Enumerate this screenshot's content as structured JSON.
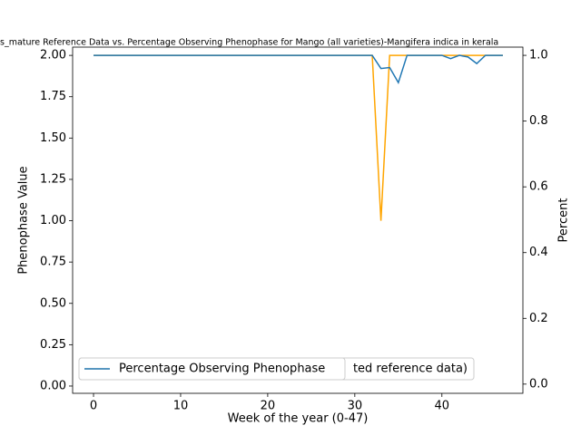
{
  "chart_data": {
    "type": "line",
    "title": "s_mature Reference Data vs. Percentage Observing Phenophase for Mango (all varieties)-Mangifera indica in kerala",
    "x_label": "Week of the year (0-47)",
    "y_label": "Phenophase Value",
    "y2_label": "Percent",
    "x": [
      0,
      1,
      2,
      3,
      4,
      5,
      6,
      7,
      8,
      9,
      10,
      11,
      12,
      13,
      14,
      15,
      16,
      17,
      18,
      19,
      20,
      21,
      22,
      23,
      24,
      25,
      26,
      27,
      28,
      29,
      30,
      31,
      32,
      33,
      34,
      35,
      36,
      37,
      38,
      39,
      40,
      41,
      42,
      43,
      44,
      45,
      46,
      47
    ],
    "series": [
      {
        "name": "ted reference data)",
        "color": "#ffa500",
        "axis": "y",
        "values": [
          2,
          2,
          2,
          2,
          2,
          2,
          2,
          2,
          2,
          2,
          2,
          2,
          2,
          2,
          2,
          2,
          2,
          2,
          2,
          2,
          2,
          2,
          2,
          2,
          2,
          2,
          2,
          2,
          2,
          2,
          2,
          2,
          2,
          1,
          2,
          2,
          2,
          2,
          2,
          2,
          2,
          2,
          2,
          2,
          2,
          2,
          2,
          2
        ]
      },
      {
        "name": "Percentage Observing Phenophase",
        "color": "#1f77b4",
        "axis": "y2",
        "values": [
          1,
          1,
          1,
          1,
          1,
          1,
          1,
          1,
          1,
          1,
          1,
          1,
          1,
          1,
          1,
          1,
          1,
          1,
          1,
          1,
          1,
          1,
          1,
          1,
          1,
          1,
          1,
          1,
          1,
          1,
          1,
          1,
          1,
          0.96,
          0.963,
          0.917,
          1,
          1,
          1,
          1,
          1,
          0.99,
          1,
          0.995,
          0.975,
          1,
          1,
          1
        ]
      }
    ],
    "xlim": [
      -2.4,
      49.3
    ],
    "xticks": [
      0,
      10,
      20,
      30,
      40
    ],
    "ylim": [
      -0.044,
      2.05
    ],
    "yticks": [
      {
        "value": 0,
        "label": "0.00"
      },
      {
        "value": 0.25,
        "label": "0.25"
      },
      {
        "value": 0.5,
        "label": "0.50"
      },
      {
        "value": 0.75,
        "label": "0.75"
      },
      {
        "value": 1,
        "label": "1.00"
      },
      {
        "value": 1.25,
        "label": "1.25"
      },
      {
        "value": 1.5,
        "label": "1.50"
      },
      {
        "value": 1.75,
        "label": "1.75"
      },
      {
        "value": 2,
        "label": "2.00"
      }
    ],
    "y2lim": [
      -0.028,
      1.025
    ],
    "y2ticks": [
      {
        "value": 0,
        "label": "0.0"
      },
      {
        "value": 0.2,
        "label": "0.2"
      },
      {
        "value": 0.4,
        "label": "0.4"
      },
      {
        "value": 0.6,
        "label": "0.6"
      },
      {
        "value": 0.8,
        "label": "0.8"
      },
      {
        "value": 1,
        "label": "1.0"
      }
    ]
  }
}
